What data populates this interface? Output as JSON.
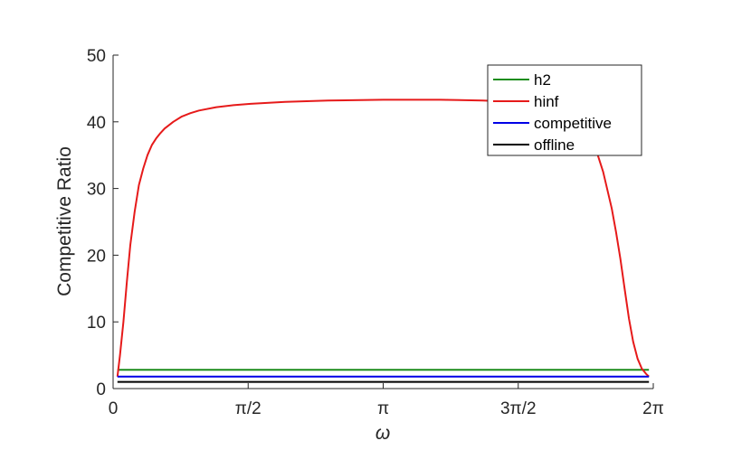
{
  "chart_data": {
    "type": "line",
    "xlabel": "ω",
    "ylabel": "Competitive Ratio",
    "xlim": [
      0,
      6.2832
    ],
    "ylim": [
      0,
      50
    ],
    "xticks": [
      {
        "value": 0,
        "label": "0"
      },
      {
        "value": 1.5708,
        "label": "π/2"
      },
      {
        "value": 3.1416,
        "label": "π"
      },
      {
        "value": 4.7124,
        "label": "3π/2"
      },
      {
        "value": 6.2832,
        "label": "2π"
      }
    ],
    "yticks": [
      {
        "value": 0,
        "label": "0"
      },
      {
        "value": 10,
        "label": "10"
      },
      {
        "value": 20,
        "label": "20"
      },
      {
        "value": 30,
        "label": "30"
      },
      {
        "value": 40,
        "label": "40"
      },
      {
        "value": 50,
        "label": "50"
      }
    ],
    "grid": false,
    "legend_position": "top-right",
    "series": [
      {
        "name": "h2",
        "color": "#1a8c1a",
        "x": [
          0.05,
          6.2332
        ],
        "y": [
          2.8,
          2.8
        ]
      },
      {
        "name": "hinf",
        "color": "#e61a1a",
        "x": [
          0.05,
          0.08,
          0.12,
          0.16,
          0.2,
          0.25,
          0.3,
          0.35,
          0.4,
          0.45,
          0.5,
          0.55,
          0.6,
          0.7,
          0.8,
          0.9,
          1.0,
          1.2,
          1.4,
          1.6,
          2.0,
          2.5,
          3.1416,
          3.8,
          4.3,
          4.7,
          5.0,
          5.2,
          5.4,
          5.5,
          5.6,
          5.7,
          5.8,
          5.85,
          5.9,
          5.95,
          6.0,
          6.05,
          6.1,
          6.15,
          6.2,
          6.2332
        ],
        "y": [
          1.8,
          5.0,
          10.0,
          16.0,
          21.5,
          26.5,
          30.5,
          33.0,
          35.0,
          36.5,
          37.5,
          38.3,
          39.0,
          40.0,
          40.8,
          41.3,
          41.7,
          42.2,
          42.5,
          42.7,
          43.0,
          43.2,
          43.3,
          43.3,
          43.2,
          43.0,
          42.6,
          42.0,
          40.5,
          39.0,
          36.5,
          32.5,
          27.0,
          23.5,
          19.5,
          15.0,
          10.5,
          7.0,
          4.5,
          3.0,
          2.2,
          1.8
        ]
      },
      {
        "name": "competitive",
        "color": "#0000e6",
        "x": [
          0.05,
          6.2332
        ],
        "y": [
          1.8,
          1.8
        ]
      },
      {
        "name": "offline",
        "color": "#000000",
        "x": [
          0.05,
          6.2332
        ],
        "y": [
          1.0,
          1.0
        ]
      }
    ]
  }
}
